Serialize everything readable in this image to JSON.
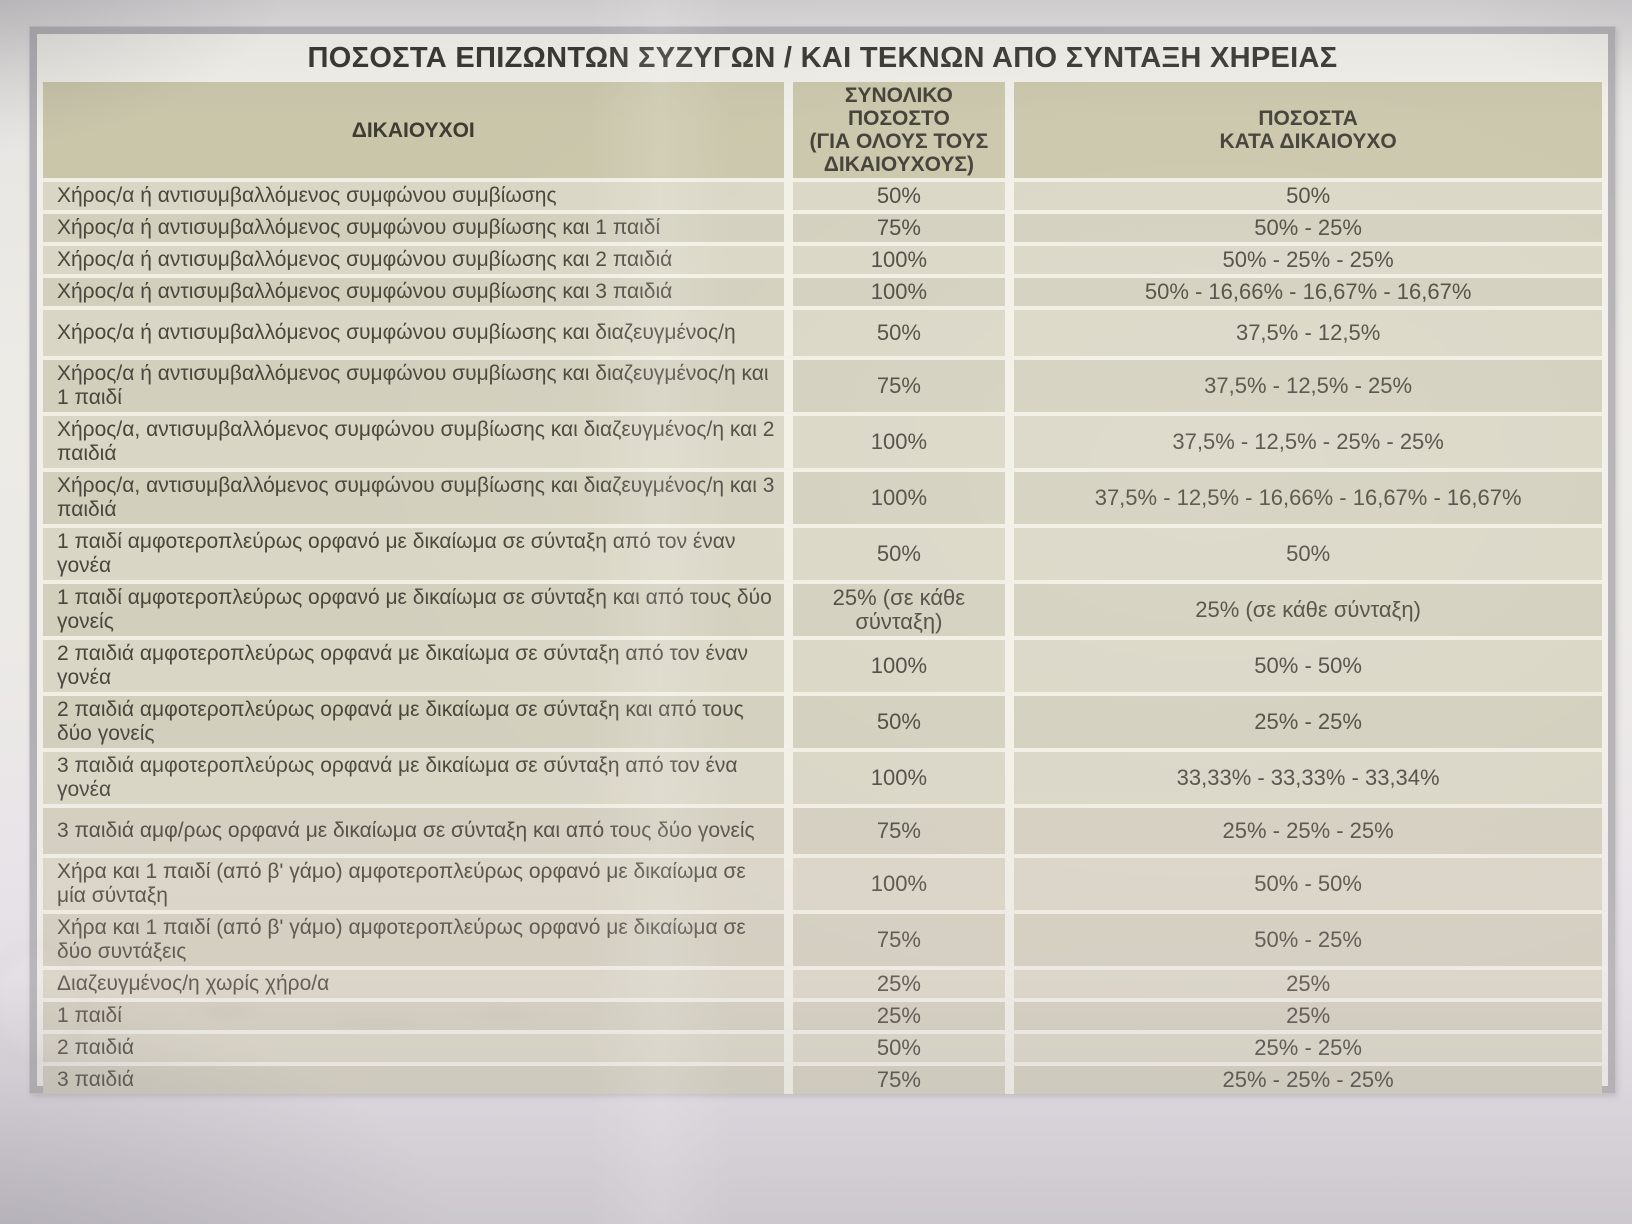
{
  "title": "ΠΟΣΟΣΤΑ ΕΠΙΖΩΝΤΩΝ ΣΥΖΥΓΩΝ / ΚΑΙ ΤΕΚΝΩΝ ΑΠΟ ΣΥΝΤΑΞΗ ΧΗΡΕΙΑΣ",
  "colors": {
    "header_bg": "#cac6aa",
    "row_bg": "#dad6c5",
    "row_bg_alt": "#d3cfbd",
    "separator": "#f1efe4",
    "frame_border": "#b2b0b4",
    "paper": "#f1efe9",
    "text": "#4a463c"
  },
  "table": {
    "columns": [
      "ΔΙΚΑΙΟΥΧΟΙ",
      "ΣΥΝΟΛΙΚΟ ΠΟΣΟΣΤΟ\n(ΓΙΑ ΟΛΟΥΣ ΤΟΥΣ\nΔΙΚΑΙΟΥΧΟΥΣ)",
      "ΠΟΣΟΣΤΑ\nΚΑΤΑ ΔΙΚΑΙΟΥΧΟ"
    ],
    "rows": [
      {
        "beneficiary": "Χήρος/α ή αντισυμβαλλόμενος συμφώνου συμβίωσης",
        "total": "50%",
        "per_beneficiary": "50%"
      },
      {
        "beneficiary": "Χήρος/α ή αντισυμβαλλόμενος συμφώνου συμβίωσης και 1 παιδί",
        "total": "75%",
        "per_beneficiary": "50% - 25%"
      },
      {
        "beneficiary": "Χήρος/α ή αντισυμβαλλόμενος συμφώνου συμβίωσης και 2 παιδιά",
        "total": "100%",
        "per_beneficiary": "50% - 25% - 25%"
      },
      {
        "beneficiary": "Χήρος/α ή αντισυμβαλλόμενος συμφώνου συμβίωσης και 3 παιδιά",
        "total": "100%",
        "per_beneficiary": "50% - 16,66% - 16,67% - 16,67%"
      },
      {
        "beneficiary": "Χήρος/α ή αντισυμβαλλόμενος συμφώνου συμβίωσης και διαζευγμένος/η",
        "total": "50%",
        "per_beneficiary": "37,5% - 12,5%"
      },
      {
        "beneficiary": "Χήρος/α ή αντισυμβαλλόμενος συμφώνου συμβίωσης και διαζευγμένος/η και 1 παιδί",
        "total": "75%",
        "per_beneficiary": "37,5% - 12,5% - 25%"
      },
      {
        "beneficiary": "Χήρος/α, αντισυμβαλλόμενος συμφώνου συμβίωσης και διαζευγμένος/η και 2 παιδιά",
        "total": "100%",
        "per_beneficiary": "37,5% - 12,5% - 25% - 25%"
      },
      {
        "beneficiary": "Χήρος/α, αντισυμβαλλόμενος συμφώνου συμβίωσης και διαζευγμένος/η και 3 παιδιά",
        "total": "100%",
        "per_beneficiary": "37,5% - 12,5% - 16,66% - 16,67% - 16,67%"
      },
      {
        "beneficiary": "1 παιδί αμφοτεροπλεύρως ορφανό με δικαίωμα σε σύνταξη από τον έναν γονέα",
        "total": "50%",
        "per_beneficiary": "50%"
      },
      {
        "beneficiary": "1 παιδί αμφοτεροπλεύρως ορφανό με δικαίωμα σε σύνταξη και από τους δύο γονείς",
        "total": "25% (σε κάθε σύνταξη)",
        "per_beneficiary": "25% (σε κάθε σύνταξη)"
      },
      {
        "beneficiary": "2 παιδιά αμφοτεροπλεύρως ορφανά με δικαίωμα σε σύνταξη από τον έναν γονέα",
        "total": "100%",
        "per_beneficiary": "50% - 50%"
      },
      {
        "beneficiary": "2 παιδιά αμφοτεροπλεύρως ορφανά με δικαίωμα σε σύνταξη και από τους δύο γονείς",
        "total": "50%",
        "per_beneficiary": "25% - 25%"
      },
      {
        "beneficiary": "3 παιδιά αμφοτεροπλεύρως ορφανά με δικαίωμα σε σύνταξη από τον ένα γονέα",
        "total": "100%",
        "per_beneficiary": "33,33% - 33,33% - 33,34%"
      },
      {
        "beneficiary": "3 παιδιά αμφ/ρως ορφανά με δικαίωμα σε σύνταξη και από τους δύο γονείς",
        "total": "75%",
        "per_beneficiary": "25% - 25% - 25%"
      },
      {
        "beneficiary": "Χήρα και 1 παιδί (από β' γάμο) αμφοτεροπλεύρως ορφανό με δικαίωμα σε μία σύνταξη",
        "total": "100%",
        "per_beneficiary": "50% - 50%"
      },
      {
        "beneficiary": "Χήρα και 1 παιδί (από β' γάμο) αμφοτεροπλεύρως ορφανό με δικαίωμα σε δύο συντάξεις",
        "total": "75%",
        "per_beneficiary": "50% - 25%"
      },
      {
        "beneficiary": "Διαζευγμένος/η χωρίς χήρο/α",
        "total": "25%",
        "per_beneficiary": "25%"
      },
      {
        "beneficiary": "1 παιδί",
        "total": "25%",
        "per_beneficiary": "25%"
      },
      {
        "beneficiary": "2 παιδιά",
        "total": "50%",
        "per_beneficiary": "25% - 25%"
      },
      {
        "beneficiary": "3 παιδιά",
        "total": "75%",
        "per_beneficiary": "25% - 25% - 25%"
      }
    ]
  }
}
